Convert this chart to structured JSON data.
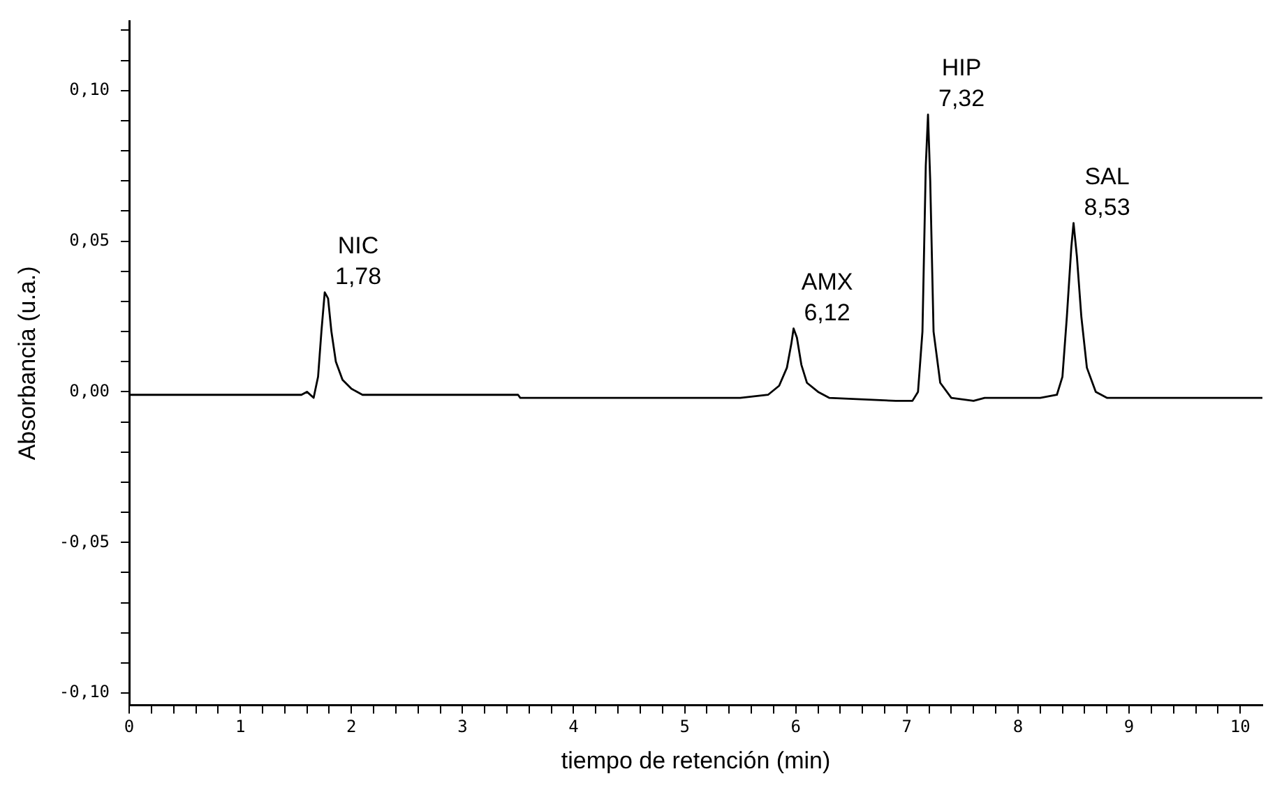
{
  "chart_data": {
    "type": "line",
    "xlabel": "tiempo de retención (min)",
    "ylabel": "Absorbancia (u.a.)",
    "xlim": [
      0,
      10.2
    ],
    "ylim": [
      -0.104,
      0.123
    ],
    "xticks": [
      {
        "value": 0,
        "label": "0"
      },
      {
        "value": 0.2,
        "label": null
      },
      {
        "value": 0.4,
        "label": null
      },
      {
        "value": 0.6,
        "label": null
      },
      {
        "value": 0.8,
        "label": null
      },
      {
        "value": 1,
        "label": "1"
      },
      {
        "value": 1.2,
        "label": null
      },
      {
        "value": 1.4,
        "label": null
      },
      {
        "value": 1.6,
        "label": null
      },
      {
        "value": 1.8,
        "label": null
      },
      {
        "value": 2,
        "label": "2"
      },
      {
        "value": 2.2,
        "label": null
      },
      {
        "value": 2.4,
        "label": null
      },
      {
        "value": 2.6,
        "label": null
      },
      {
        "value": 2.8,
        "label": null
      },
      {
        "value": 3,
        "label": "3"
      },
      {
        "value": 3.2,
        "label": null
      },
      {
        "value": 3.4,
        "label": null
      },
      {
        "value": 3.6,
        "label": null
      },
      {
        "value": 3.8,
        "label": null
      },
      {
        "value": 4,
        "label": "4"
      },
      {
        "value": 4.2,
        "label": null
      },
      {
        "value": 4.4,
        "label": null
      },
      {
        "value": 4.6,
        "label": null
      },
      {
        "value": 4.8,
        "label": null
      },
      {
        "value": 5,
        "label": "5"
      },
      {
        "value": 5.2,
        "label": null
      },
      {
        "value": 5.4,
        "label": null
      },
      {
        "value": 5.6,
        "label": null
      },
      {
        "value": 5.8,
        "label": null
      },
      {
        "value": 6,
        "label": "6"
      },
      {
        "value": 6.2,
        "label": null
      },
      {
        "value": 6.4,
        "label": null
      },
      {
        "value": 6.6,
        "label": null
      },
      {
        "value": 6.8,
        "label": null
      },
      {
        "value": 7,
        "label": "7"
      },
      {
        "value": 7.2,
        "label": null
      },
      {
        "value": 7.4,
        "label": null
      },
      {
        "value": 7.6,
        "label": null
      },
      {
        "value": 7.8,
        "label": null
      },
      {
        "value": 8,
        "label": "8"
      },
      {
        "value": 8.2,
        "label": null
      },
      {
        "value": 8.4,
        "label": null
      },
      {
        "value": 8.6,
        "label": null
      },
      {
        "value": 8.8,
        "label": null
      },
      {
        "value": 9,
        "label": "9"
      },
      {
        "value": 9.2,
        "label": null
      },
      {
        "value": 9.4,
        "label": null
      },
      {
        "value": 9.6,
        "label": null
      },
      {
        "value": 9.8,
        "label": null
      },
      {
        "value": 10,
        "label": "10"
      }
    ],
    "yticks": [
      {
        "value": -0.1,
        "label": "-0,10"
      },
      {
        "value": -0.09,
        "label": null
      },
      {
        "value": -0.08,
        "label": null
      },
      {
        "value": -0.07,
        "label": null
      },
      {
        "value": -0.06,
        "label": null
      },
      {
        "value": -0.05,
        "label": "-0,05"
      },
      {
        "value": -0.04,
        "label": null
      },
      {
        "value": -0.03,
        "label": null
      },
      {
        "value": -0.02,
        "label": null
      },
      {
        "value": -0.01,
        "label": null
      },
      {
        "value": 0,
        "label": "0,00"
      },
      {
        "value": 0.01,
        "label": null
      },
      {
        "value": 0.02,
        "label": null
      },
      {
        "value": 0.03,
        "label": null
      },
      {
        "value": 0.04,
        "label": null
      },
      {
        "value": 0.05,
        "label": "0,05"
      },
      {
        "value": 0.06,
        "label": null
      },
      {
        "value": 0.07,
        "label": null
      },
      {
        "value": 0.08,
        "label": null
      },
      {
        "value": 0.09,
        "label": null
      },
      {
        "value": 0.1,
        "label": "0,10"
      },
      {
        "value": 0.11,
        "label": null
      },
      {
        "value": 0.12,
        "label": null
      }
    ],
    "grid": false,
    "legend": false,
    "series": [
      {
        "color": "#000000",
        "x": [
          0,
          1.2,
          1.55,
          1.6,
          1.66,
          1.7,
          1.73,
          1.76,
          1.79,
          1.82,
          1.86,
          1.92,
          2.0,
          2.1,
          3.5,
          3.52,
          5.5,
          5.75,
          5.85,
          5.92,
          5.96,
          5.98,
          6.01,
          6.05,
          6.1,
          6.2,
          6.3,
          6.9,
          7.05,
          7.1,
          7.14,
          7.17,
          7.19,
          7.21,
          7.24,
          7.3,
          7.4,
          7.6,
          7.7,
          8.2,
          8.35,
          8.4,
          8.44,
          8.48,
          8.5,
          8.53,
          8.57,
          8.62,
          8.7,
          8.8,
          10.2
        ],
        "values": [
          -0.001,
          -0.001,
          -0.001,
          0.0,
          -0.002,
          0.005,
          0.02,
          0.033,
          0.031,
          0.02,
          0.01,
          0.004,
          0.001,
          -0.001,
          -0.001,
          -0.002,
          -0.002,
          -0.001,
          0.002,
          0.008,
          0.016,
          0.021,
          0.018,
          0.009,
          0.003,
          0.0,
          -0.002,
          -0.003,
          -0.003,
          0.0,
          0.02,
          0.075,
          0.092,
          0.07,
          0.02,
          0.003,
          -0.002,
          -0.003,
          -0.002,
          -0.002,
          -0.001,
          0.005,
          0.025,
          0.048,
          0.056,
          0.045,
          0.025,
          0.008,
          0.0,
          -0.002,
          -0.002
        ]
      }
    ],
    "annotations": [
      {
        "text": "NIC\n1,78",
        "x": 1.76,
        "y": 0.033
      },
      {
        "text": "AMX\n6,12",
        "x": 5.98,
        "y": 0.021
      },
      {
        "text": "HIP\n7,32",
        "x": 7.19,
        "y": 0.092
      },
      {
        "text": "SAL\n8,53",
        "x": 8.5,
        "y": 0.056
      }
    ]
  }
}
